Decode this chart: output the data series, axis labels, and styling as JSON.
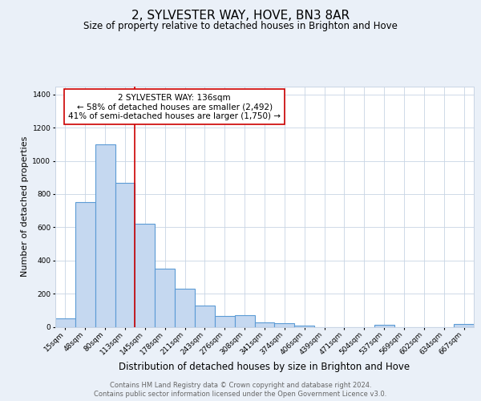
{
  "title": "2, SYLVESTER WAY, HOVE, BN3 8AR",
  "subtitle": "Size of property relative to detached houses in Brighton and Hove",
  "xlabel": "Distribution of detached houses by size in Brighton and Hove",
  "ylabel": "Number of detached properties",
  "bar_labels": [
    "15sqm",
    "48sqm",
    "80sqm",
    "113sqm",
    "145sqm",
    "178sqm",
    "211sqm",
    "243sqm",
    "276sqm",
    "308sqm",
    "341sqm",
    "374sqm",
    "406sqm",
    "439sqm",
    "471sqm",
    "504sqm",
    "537sqm",
    "569sqm",
    "602sqm",
    "634sqm",
    "667sqm"
  ],
  "bar_values": [
    50,
    750,
    1100,
    870,
    620,
    350,
    230,
    130,
    65,
    70,
    25,
    20,
    5,
    0,
    0,
    0,
    10,
    0,
    0,
    0,
    15
  ],
  "bar_color": "#c5d8f0",
  "bar_edgecolor": "#5b9bd5",
  "bar_linewidth": 0.8,
  "vline_color": "#cc0000",
  "vline_linewidth": 1.2,
  "vline_x": 3.5,
  "annotation_title": "2 SYLVESTER WAY: 136sqm",
  "annotation_line1": "← 58% of detached houses are smaller (2,492)",
  "annotation_line2": "41% of semi-detached houses are larger (1,750) →",
  "annotation_box_edgecolor": "#cc0000",
  "annotation_box_facecolor": "#ffffff",
  "annotation_fontsize": 7.5,
  "ylim": [
    0,
    1450
  ],
  "yticks": [
    0,
    200,
    400,
    600,
    800,
    1000,
    1200,
    1400
  ],
  "background_color": "#eaf0f8",
  "plot_background": "#ffffff",
  "grid_color": "#c8d4e4",
  "footer_line1": "Contains HM Land Registry data © Crown copyright and database right 2024.",
  "footer_line2": "Contains public sector information licensed under the Open Government Licence v3.0.",
  "title_fontsize": 11,
  "subtitle_fontsize": 8.5,
  "xlabel_fontsize": 8.5,
  "ylabel_fontsize": 8,
  "tick_fontsize": 6.5,
  "footer_fontsize": 6
}
